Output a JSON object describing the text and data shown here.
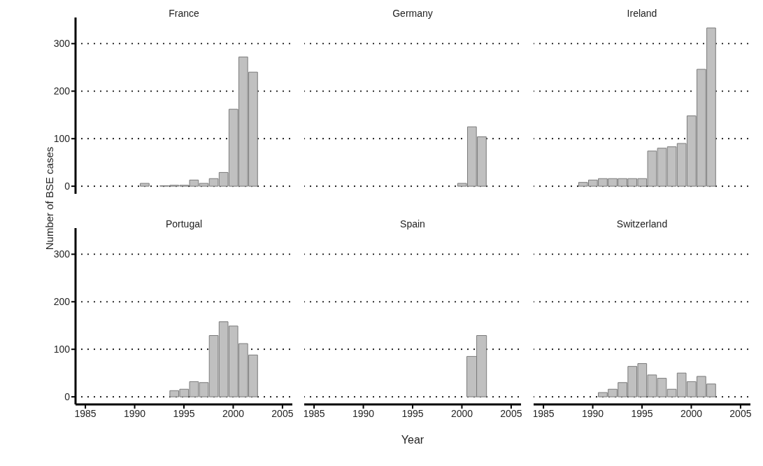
{
  "chart_data": [
    {
      "type": "bar",
      "title": "France",
      "ylabel": "Number of BSE cases",
      "x": [
        1991,
        1993,
        1994,
        1995,
        1996,
        1997,
        1998,
        1999,
        2000,
        2001,
        2002
      ],
      "values": [
        6,
        1,
        2,
        2,
        13,
        6,
        16,
        29,
        162,
        272,
        240
      ],
      "color": "#c0c0c0",
      "xlim": [
        1984,
        2006
      ],
      "xticks": [
        1985,
        1990,
        1995,
        2000,
        2005
      ],
      "ylim": [
        -16,
        355
      ],
      "yticks": [
        0,
        100,
        200,
        300
      ],
      "grid": "y",
      "tick_labels": "y"
    },
    {
      "type": "bar",
      "title": "Germany",
      "x": [
        2000,
        2001,
        2002
      ],
      "values": [
        6,
        125,
        104
      ],
      "color": "#c0c0c0",
      "xlim": [
        1984,
        2006
      ],
      "xticks": [
        1985,
        1990,
        1995,
        2000,
        2005
      ],
      "yticks": [
        0,
        100,
        200,
        300
      ],
      "grid": "y",
      "tick_labels": false
    },
    {
      "type": "bar",
      "title": "Ireland",
      "x": [
        1989,
        1990,
        1991,
        1992,
        1993,
        1994,
        1995,
        1996,
        1997,
        1998,
        1999,
        2000,
        2001,
        2002
      ],
      "values": [
        8,
        13,
        16,
        16,
        16,
        16,
        16,
        74,
        80,
        83,
        90,
        148,
        246,
        333
      ],
      "color": "#c0c0c0",
      "xlim": [
        1984,
        2006
      ],
      "xticks": [
        1985,
        1990,
        1995,
        2000,
        2005
      ],
      "yticks": [
        0,
        100,
        200,
        300
      ],
      "grid": "y",
      "tick_labels": false
    },
    {
      "type": "bar",
      "title": "Portugal",
      "x": [
        1994,
        1995,
        1996,
        1997,
        1998,
        1999,
        2000,
        2001,
        2002
      ],
      "values": [
        13,
        16,
        32,
        30,
        129,
        158,
        149,
        112,
        88
      ],
      "color": "#c0c0c0",
      "xlim": [
        1984,
        2006
      ],
      "xticks": [
        1985,
        1990,
        1995,
        2000,
        2005
      ],
      "ylim": [
        -16,
        355
      ],
      "yticks": [
        0,
        100,
        200,
        300
      ],
      "grid": "y"
    },
    {
      "type": "bar",
      "title": "Spain",
      "xlabel": "Year",
      "x": [
        2001,
        2002
      ],
      "values": [
        85,
        129
      ],
      "color": "#c0c0c0",
      "xlim": [
        1984,
        2006
      ],
      "xticks": [
        1985,
        1990,
        1995,
        2000,
        2005
      ],
      "yticks": [
        0,
        100,
        200,
        300
      ],
      "grid": "y",
      "tick_labels": "x"
    },
    {
      "type": "bar",
      "title": "Switzerland",
      "x": [
        1991,
        1992,
        1993,
        1994,
        1995,
        1996,
        1997,
        1998,
        1999,
        2000,
        2001,
        2002
      ],
      "values": [
        9,
        16,
        30,
        64,
        70,
        46,
        39,
        16,
        50,
        32,
        43,
        27
      ],
      "color": "#c0c0c0",
      "xlim": [
        1984,
        2006
      ],
      "xticks": [
        1985,
        1990,
        1995,
        2000,
        2005
      ],
      "yticks": [
        0,
        100,
        200,
        300
      ],
      "grid": "y",
      "tick_labels": "x"
    }
  ]
}
